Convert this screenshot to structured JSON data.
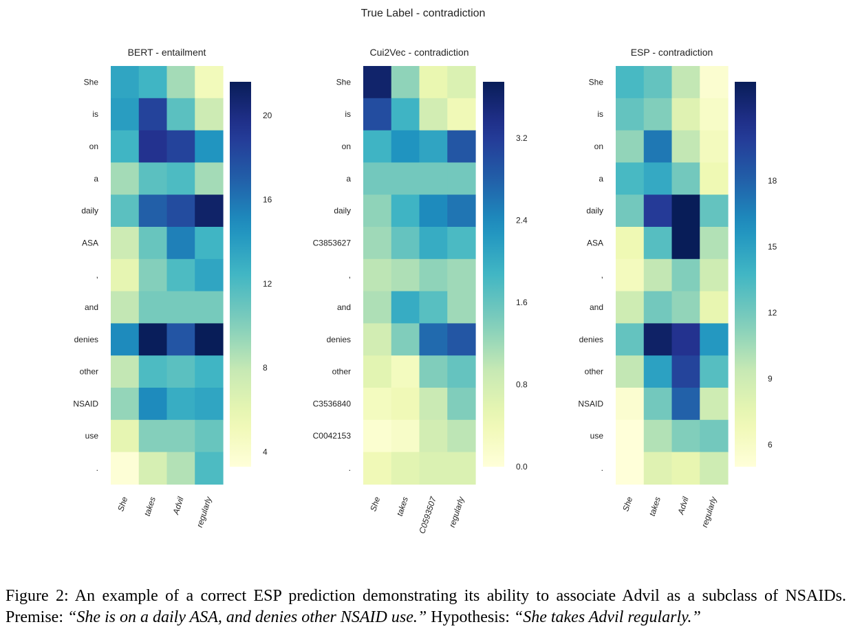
{
  "figure": {
    "suptitle": "True Label - contradiction"
  },
  "chart_data": [
    {
      "type": "heatmap",
      "title": "BERT - entailment",
      "rows": [
        "She",
        "is",
        "on",
        "a",
        "daily",
        "ASA",
        ",",
        "and",
        "denies",
        "other",
        "NSAID",
        "use",
        "."
      ],
      "cols": [
        "She",
        "takes",
        "Advil",
        "regularly"
      ],
      "values": [
        [
          13.5,
          12.5,
          9.0,
          5.0
        ],
        [
          14.0,
          18.5,
          11.5,
          7.5
        ],
        [
          12.5,
          19.5,
          18.5,
          14.5
        ],
        [
          9.0,
          11.5,
          12.0,
          9.0
        ],
        [
          11.5,
          17.0,
          18.0,
          21.0
        ],
        [
          7.5,
          11.0,
          15.5,
          12.5
        ],
        [
          6.0,
          10.0,
          12.0,
          13.5
        ],
        [
          8.0,
          10.5,
          10.5,
          10.5
        ],
        [
          15.0,
          21.5,
          17.5,
          22.0
        ],
        [
          8.0,
          12.0,
          11.5,
          12.5
        ],
        [
          9.5,
          15.0,
          13.0,
          13.5
        ],
        [
          6.0,
          10.0,
          10.0,
          11.0
        ],
        [
          3.5,
          7.0,
          8.5,
          12.0
        ]
      ],
      "vmin": 3.3,
      "vmax": 21.6,
      "colorbar_ticks": [
        4,
        8,
        12,
        16,
        20
      ]
    },
    {
      "type": "heatmap",
      "title": "Cui2Vec - contradiction",
      "rows": [
        "She",
        "is",
        "on",
        "a",
        "daily",
        "C3853627",
        ",",
        "and",
        "denies",
        "other",
        "C3536840",
        "C0042153",
        "."
      ],
      "cols": [
        "She",
        "takes",
        "C0593507",
        "regularly"
      ],
      "values": [
        [
          3.6,
          1.3,
          0.5,
          0.7
        ],
        [
          3.0,
          1.9,
          0.8,
          0.4
        ],
        [
          1.9,
          2.3,
          2.1,
          2.9
        ],
        [
          1.5,
          1.5,
          1.5,
          1.5
        ],
        [
          1.3,
          1.9,
          2.4,
          2.6
        ],
        [
          1.2,
          1.6,
          2.0,
          1.8
        ],
        [
          1.0,
          1.1,
          1.3,
          1.2
        ],
        [
          1.1,
          2.0,
          1.7,
          1.2
        ],
        [
          0.8,
          1.4,
          2.7,
          2.9
        ],
        [
          0.6,
          0.3,
          1.4,
          1.6
        ],
        [
          0.3,
          0.4,
          0.9,
          1.4
        ],
        [
          0.1,
          0.2,
          0.8,
          1.0
        ],
        [
          0.4,
          0.6,
          0.7,
          0.7
        ]
      ],
      "vmin": 0.0,
      "vmax": 3.75,
      "colorbar_ticks": [
        0.0,
        0.8,
        1.6,
        2.4,
        3.2
      ]
    },
    {
      "type": "heatmap",
      "title": "ESP - contradiction",
      "rows": [
        "She",
        "is",
        "on",
        "a",
        "daily",
        "ASA",
        ",",
        "and",
        "denies",
        "other",
        "NSAID",
        "use",
        "."
      ],
      "cols": [
        "She",
        "takes",
        "Advil",
        "regularly"
      ],
      "values": [
        [
          13.5,
          12.5,
          9.5,
          5.5
        ],
        [
          12.5,
          11.5,
          8.0,
          6.0
        ],
        [
          11.0,
          17.0,
          9.5,
          6.5
        ],
        [
          13.5,
          14.5,
          12.0,
          7.0
        ],
        [
          12.0,
          20.0,
          22.5,
          12.5
        ],
        [
          7.0,
          13.0,
          22.5,
          10.0
        ],
        [
          6.5,
          9.5,
          11.5,
          9.0
        ],
        [
          9.0,
          12.0,
          11.0,
          7.5
        ],
        [
          12.5,
          22.0,
          20.5,
          15.5
        ],
        [
          9.5,
          15.0,
          19.5,
          13.0
        ],
        [
          5.5,
          12.0,
          18.0,
          9.0
        ],
        [
          5.0,
          10.0,
          11.5,
          12.0
        ],
        [
          5.0,
          8.0,
          7.5,
          9.0
        ]
      ],
      "vmin": 5.0,
      "vmax": 22.5,
      "colorbar_ticks": [
        6,
        9,
        12,
        15,
        18
      ]
    }
  ],
  "caption": {
    "lead": "Figure 2:  An example of a correct ESP prediction demonstrating its ability to associate Advil as a subclass of NSAIDs. Premise: ",
    "premise": "“She is on a daily ASA, and denies other NSAID use.”",
    "mid": " Hypothesis: ",
    "hypothesis": "“She takes Advil regularly.”"
  }
}
